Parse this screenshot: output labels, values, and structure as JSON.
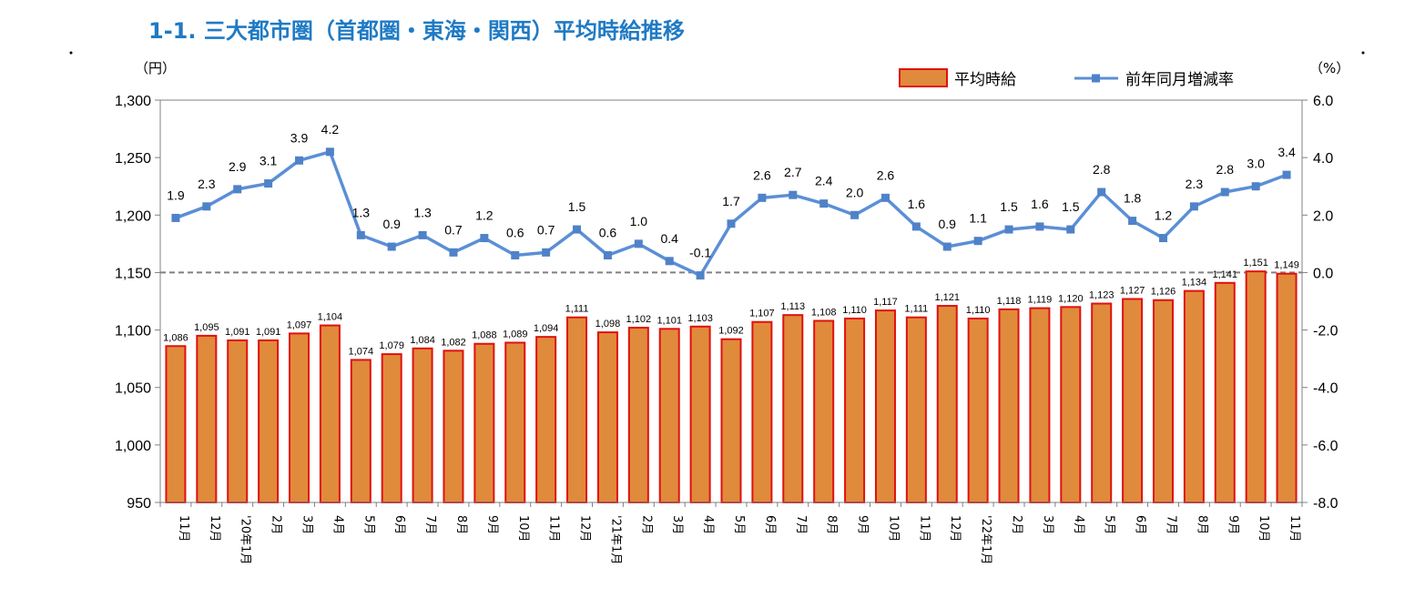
{
  "title": "1-1. 三大都市圏（首都圏・東海・関西）平均時給推移",
  "chart_data": {
    "type": "bar",
    "left_unit": "（円）",
    "right_unit": "（%）",
    "categories": [
      "11月",
      "12月",
      "'20年1月",
      "2月",
      "3月",
      "4月",
      "5月",
      "6月",
      "7月",
      "8月",
      "9月",
      "10月",
      "11月",
      "12月",
      "'21年1月",
      "2月",
      "3月",
      "4月",
      "5月",
      "6月",
      "7月",
      "8月",
      "9月",
      "10月",
      "11月",
      "12月",
      "'22年1月",
      "2月",
      "3月",
      "4月",
      "5月",
      "6月",
      "7月",
      "8月",
      "9月",
      "10月",
      "11月"
    ],
    "left_ylim": [
      950,
      1300
    ],
    "left_ticks": [
      "1,300",
      "1,250",
      "1,200",
      "1,150",
      "1,100",
      "1,050",
      "1,000",
      "950"
    ],
    "right_ylim": [
      -8,
      6
    ],
    "right_ticks": [
      "6.0",
      "4.0",
      "2.0",
      "0.0",
      "-2.0",
      "-4.0",
      "-6.0",
      "-8.0"
    ],
    "series": [
      {
        "name": "平均時給",
        "type": "bar",
        "axis": "left",
        "color": "#e08a3c",
        "edge_color": "#e0110f",
        "values": [
          1086,
          1095,
          1091,
          1091,
          1097,
          1104,
          1074,
          1079,
          1084,
          1082,
          1088,
          1089,
          1094,
          1111,
          1098,
          1102,
          1101,
          1103,
          1092,
          1107,
          1113,
          1108,
          1110,
          1117,
          1111,
          1121,
          1110,
          1118,
          1119,
          1120,
          1123,
          1127,
          1126,
          1134,
          1141,
          1151,
          1149
        ],
        "labels": [
          "1,086",
          "1,095",
          "1,091",
          "1,091",
          "1,097",
          "1,104",
          "1,074",
          "1,079",
          "1,084",
          "1,082",
          "1,088",
          "1,089",
          "1,094",
          "1,111",
          "1,098",
          "1,102",
          "1,101",
          "1,103",
          "1,092",
          "1,107",
          "1,113",
          "1,108",
          "1,110",
          "1,117",
          "1,111",
          "1,121",
          "1,110",
          "1,118",
          "1,119",
          "1,120",
          "1,123",
          "1,127",
          "1,126",
          "1,134",
          "1,141",
          "1,151",
          "1,149"
        ]
      },
      {
        "name": "前年同月増減率",
        "type": "line",
        "axis": "right",
        "color": "#5b8fd6",
        "values": [
          1.9,
          2.3,
          2.9,
          3.1,
          3.9,
          4.2,
          1.3,
          0.9,
          1.3,
          0.7,
          1.2,
          0.6,
          0.7,
          1.5,
          0.6,
          1.0,
          0.4,
          -0.1,
          1.7,
          2.6,
          2.7,
          2.4,
          2.0,
          2.6,
          1.6,
          0.9,
          1.1,
          1.5,
          1.6,
          1.5,
          2.8,
          1.8,
          1.2,
          2.3,
          2.8,
          3.0,
          3.4
        ],
        "labels": [
          "1.9",
          "2.3",
          "2.9",
          "3.1",
          "3.9",
          "4.2",
          "1.3",
          "0.9",
          "1.3",
          "0.7",
          "1.2",
          "0.6",
          "0.7",
          "1.5",
          "0.6",
          "1.0",
          "0.4",
          "-0.1",
          "1.7",
          "2.6",
          "2.7",
          "2.4",
          "2.0",
          "2.6",
          "1.6",
          "0.9",
          "1.1",
          "1.5",
          "1.6",
          "1.5",
          "2.8",
          "1.8",
          "1.2",
          "2.3",
          "2.8",
          "3.0",
          "3.4"
        ]
      }
    ],
    "reference_line": 0,
    "legend_position": "top-right"
  }
}
